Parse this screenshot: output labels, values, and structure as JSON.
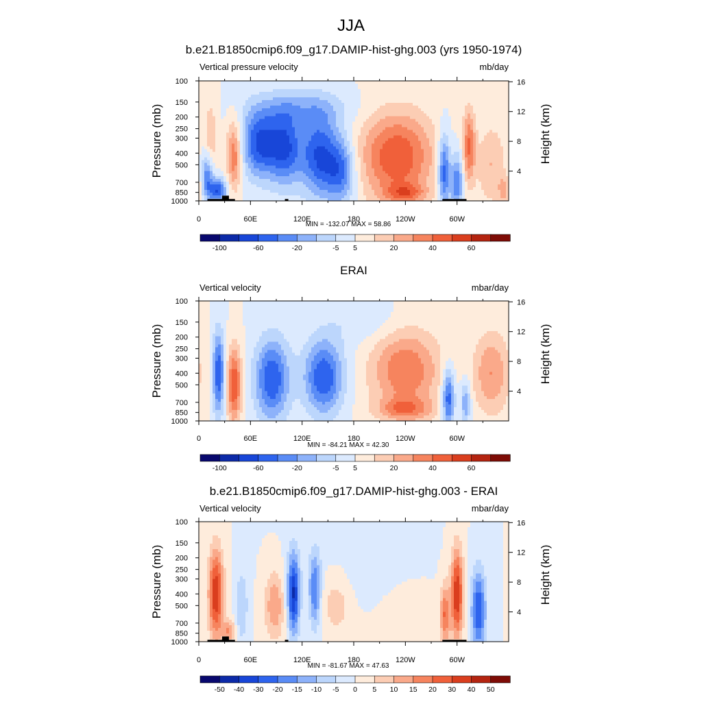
{
  "figure": {
    "title": "JJA"
  },
  "palettes": {
    "abs": [
      "#08086e",
      "#0c2aa8",
      "#1846d8",
      "#2e64ee",
      "#5a8cf6",
      "#8db2fa",
      "#bcd6fc",
      "#dceafe",
      "#feecdc",
      "#fccdb4",
      "#faa98a",
      "#f6845e",
      "#f0603a",
      "#da3e1e",
      "#b42410",
      "#7e0c06"
    ],
    "diff": [
      "#08086e",
      "#0c2aa8",
      "#1846d8",
      "#2e64ee",
      "#5a8cf6",
      "#8db2fa",
      "#bcd6fc",
      "#dceafe",
      "#feecdc",
      "#fccdb4",
      "#faa98a",
      "#f6845e",
      "#f0603a",
      "#da3e1e",
      "#b42410",
      "#7e0c06"
    ]
  },
  "panels": [
    {
      "id": "model",
      "title": "b.e21.B1850cmip6.f09_g17.DAMIP-hist-ghg.003 (yrs 1950-1974)",
      "left_label": "Vertical pressure velocity",
      "right_label": "mb/day",
      "y_axis_label": "Pressure (mb)",
      "y2_axis_label": "Height (km)",
      "minmax": "MIN = -132.07  MAX =  58.86",
      "colorbar_labels": [
        "-100",
        "-60",
        "-20",
        "-5",
        "5",
        "20",
        "40",
        "60"
      ],
      "palette": "abs",
      "topography": true
    },
    {
      "id": "obs",
      "title": "ERAI",
      "left_label": "Vertical velocity",
      "right_label": "mbar/day",
      "y_axis_label": "Pressure (mb)",
      "y2_axis_label": "Height (km)",
      "minmax": "MIN = -84.21  MAX =  42.30",
      "colorbar_labels": [
        "-100",
        "-60",
        "-20",
        "-5",
        "5",
        "20",
        "40",
        "60"
      ],
      "palette": "abs",
      "topography": false
    },
    {
      "id": "diff",
      "title": "b.e21.B1850cmip6.f09_g17.DAMIP-hist-ghg.003 - ERAI",
      "left_label": "Vertical velocity",
      "right_label": "mbar/day",
      "y_axis_label": "Pressure (mb)",
      "y2_axis_label": "Height (km)",
      "minmax": "MIN = -81.67  MAX =  47.63",
      "colorbar_labels": [
        "-50",
        "-40",
        "-30",
        "-20",
        "-15",
        "-10",
        "-5",
        "0",
        "5",
        "10",
        "15",
        "20",
        "30",
        "40",
        "50"
      ],
      "palette": "diff",
      "topography": true
    }
  ],
  "chart_data": {
    "type": "heatmap",
    "x_ticks": [
      {
        "lon": 0,
        "label": "0"
      },
      {
        "lon": 60,
        "label": "60E"
      },
      {
        "lon": 120,
        "label": "120E"
      },
      {
        "lon": 180,
        "label": "180"
      },
      {
        "lon": 240,
        "label": "120W"
      },
      {
        "lon": 300,
        "label": "60W"
      }
    ],
    "xlim": [
      0,
      360
    ],
    "y_ticks": [
      {
        "p": 100,
        "label": "100"
      },
      {
        "p": 150,
        "label": "150"
      },
      {
        "p": 200,
        "label": "200"
      },
      {
        "p": 250,
        "label": "250"
      },
      {
        "p": 300,
        "label": "300"
      },
      {
        "p": 400,
        "label": "400"
      },
      {
        "p": 500,
        "label": "500"
      },
      {
        "p": 700,
        "label": "700"
      },
      {
        "p": 850,
        "label": "850"
      },
      {
        "p": 1000,
        "label": "1000"
      }
    ],
    "ylim": [
      1000,
      100
    ],
    "y_scale": "log",
    "y2_ticks": [
      {
        "km": 4,
        "label": "4"
      },
      {
        "km": 8,
        "label": "8"
      },
      {
        "km": 12,
        "label": "12"
      },
      {
        "km": 16,
        "label": "16"
      }
    ],
    "topography_segments": [
      {
        "lon0": 10,
        "lon1": 42,
        "p": 965
      },
      {
        "lon0": 27,
        "lon1": 35,
        "p": 905
      },
      {
        "lon0": 100,
        "lon1": 104,
        "p": 965
      },
      {
        "lon0": 283,
        "lon1": 311,
        "p": 965
      }
    ],
    "features": {
      "model": [
        {
          "lon": 10,
          "p": 620,
          "sx": 5,
          "sy": 0.32,
          "amp": -4
        },
        {
          "lon": 22,
          "p": 820,
          "sx": 7,
          "sy": 0.16,
          "amp": -5
        },
        {
          "lon": 41,
          "p": 420,
          "sx": 6,
          "sy": 0.45,
          "amp": 4
        },
        {
          "lon": 14,
          "p": 300,
          "sx": 5,
          "sy": 0.5,
          "amp": 2
        },
        {
          "lon": 70,
          "p": 330,
          "sx": 14,
          "sy": 0.45,
          "amp": -5
        },
        {
          "lon": 100,
          "p": 360,
          "sx": 14,
          "sy": 0.5,
          "amp": -5
        },
        {
          "lon": 140,
          "p": 420,
          "sx": 15,
          "sy": 0.55,
          "amp": -5
        },
        {
          "lon": 165,
          "p": 560,
          "sx": 12,
          "sy": 0.45,
          "amp": -4
        },
        {
          "lon": 120,
          "p": 170,
          "sx": 40,
          "sy": 0.25,
          "amp": -2
        },
        {
          "lon": 230,
          "p": 430,
          "sx": 30,
          "sy": 0.6,
          "amp": 5
        },
        {
          "lon": 240,
          "p": 860,
          "sx": 16,
          "sy": 0.12,
          "amp": 3
        },
        {
          "lon": 285,
          "p": 560,
          "sx": 5,
          "sy": 0.5,
          "amp": -5
        },
        {
          "lon": 300,
          "p": 700,
          "sx": 5,
          "sy": 0.4,
          "amp": -4
        },
        {
          "lon": 314,
          "p": 350,
          "sx": 5,
          "sy": 0.5,
          "amp": 4
        },
        {
          "lon": 340,
          "p": 500,
          "sx": 12,
          "sy": 0.55,
          "amp": 2
        },
        {
          "lon": 355,
          "p": 820,
          "sx": 5,
          "sy": 0.2,
          "amp": 2
        }
      ],
      "obs": [
        {
          "lon": 23,
          "p": 400,
          "sx": 5,
          "sy": 0.55,
          "amp": -5
        },
        {
          "lon": 41,
          "p": 500,
          "sx": 6,
          "sy": 0.5,
          "amp": 5
        },
        {
          "lon": 85,
          "p": 450,
          "sx": 14,
          "sy": 0.55,
          "amp": -5
        },
        {
          "lon": 145,
          "p": 430,
          "sx": 16,
          "sy": 0.5,
          "amp": -5
        },
        {
          "lon": 240,
          "p": 380,
          "sx": 28,
          "sy": 0.55,
          "amp": 4
        },
        {
          "lon": 240,
          "p": 800,
          "sx": 22,
          "sy": 0.15,
          "amp": 3
        },
        {
          "lon": 290,
          "p": 650,
          "sx": 5,
          "sy": 0.4,
          "amp": -5
        },
        {
          "lon": 310,
          "p": 700,
          "sx": 4,
          "sy": 0.3,
          "amp": -3
        },
        {
          "lon": 340,
          "p": 400,
          "sx": 15,
          "sy": 0.55,
          "amp": 3
        },
        {
          "lon": 190,
          "p": 150,
          "sx": 30,
          "sy": 0.3,
          "amp": -1
        }
      ],
      "diff": [
        {
          "lon": 20,
          "p": 400,
          "sx": 6,
          "sy": 0.6,
          "amp": 6
        },
        {
          "lon": 35,
          "p": 820,
          "sx": 5,
          "sy": 0.15,
          "amp": 3
        },
        {
          "lon": 50,
          "p": 500,
          "sx": 5,
          "sy": 0.5,
          "amp": -2
        },
        {
          "lon": 88,
          "p": 500,
          "sx": 8,
          "sy": 0.45,
          "amp": 3
        },
        {
          "lon": 110,
          "p": 400,
          "sx": 5,
          "sy": 0.55,
          "amp": -6
        },
        {
          "lon": 135,
          "p": 380,
          "sx": 5,
          "sy": 0.5,
          "amp": -4
        },
        {
          "lon": 160,
          "p": 450,
          "sx": 16,
          "sy": 0.5,
          "amp": 2
        },
        {
          "lon": 180,
          "p": 300,
          "sx": 40,
          "sy": 0.6,
          "amp": -1
        },
        {
          "lon": 230,
          "p": 650,
          "sx": 25,
          "sy": 0.5,
          "amp": 1
        },
        {
          "lon": 300,
          "p": 400,
          "sx": 5,
          "sy": 0.6,
          "amp": 6
        },
        {
          "lon": 286,
          "p": 600,
          "sx": 4,
          "sy": 0.4,
          "amp": 4
        },
        {
          "lon": 325,
          "p": 550,
          "sx": 6,
          "sy": 0.55,
          "amp": -5
        }
      ]
    }
  }
}
